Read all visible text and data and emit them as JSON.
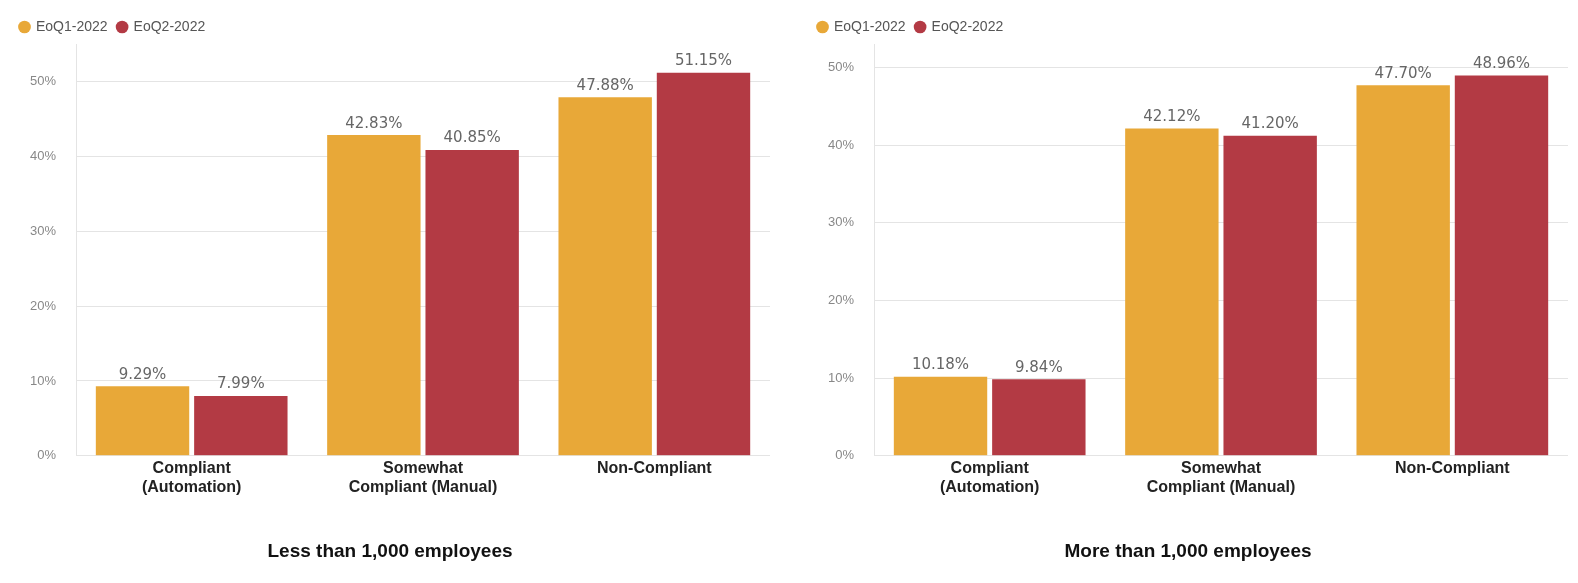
{
  "chart_data": [
    {
      "type": "bar",
      "title": "Less than 1,000 employees",
      "categories": [
        "Compliant (Automation)",
        "Somewhat Compliant (Manual)",
        "Non-Compliant"
      ],
      "ylim": [
        0,
        55
      ],
      "series": [
        {
          "name": "EoQ1-2022",
          "color": "#e8a838",
          "values": [
            9.29,
            42.83,
            47.88
          ],
          "value_labels": [
            "9.29%",
            "42.83%",
            "47.88%"
          ]
        },
        {
          "name": "EoQ2-2022",
          "color": "#b33a44",
          "values": [
            7.99,
            40.85,
            51.15
          ],
          "value_labels": [
            "7.99%",
            "40.85%",
            "51.15%"
          ]
        }
      ],
      "yticks": [
        {
          "value": 0,
          "label": "0%"
        },
        {
          "value": 10,
          "label": "10%"
        },
        {
          "value": 20,
          "label": "20%"
        },
        {
          "value": 30,
          "label": "30%"
        },
        {
          "value": 40,
          "label": "40%"
        },
        {
          "value": 50,
          "label": "50%"
        }
      ],
      "grid": "y",
      "legend": "top left"
    },
    {
      "type": "bar",
      "title": "More than 1,000 employees",
      "categories": [
        "Compliant (Automation)",
        "Somewhat Compliant (Manual)",
        "Non-Compliant"
      ],
      "ylim": [
        0,
        53
      ],
      "series": [
        {
          "name": "EoQ1-2022",
          "color": "#e8a838",
          "values": [
            10.18,
            42.12,
            47.7
          ],
          "value_labels": [
            "10.18%",
            "42.12%",
            "47.70%"
          ]
        },
        {
          "name": "EoQ2-2022",
          "color": "#b33a44",
          "values": [
            9.84,
            41.2,
            48.96
          ],
          "value_labels": [
            "9.84%",
            "41.20%",
            "48.96%"
          ]
        }
      ],
      "yticks": [
        {
          "value": 0,
          "label": "0%"
        },
        {
          "value": 10,
          "label": "10%"
        },
        {
          "value": 20,
          "label": "20%"
        },
        {
          "value": 30,
          "label": "30%"
        },
        {
          "value": 40,
          "label": "40%"
        },
        {
          "value": 50,
          "label": "50%"
        }
      ],
      "grid": "y",
      "legend": "top left"
    }
  ]
}
